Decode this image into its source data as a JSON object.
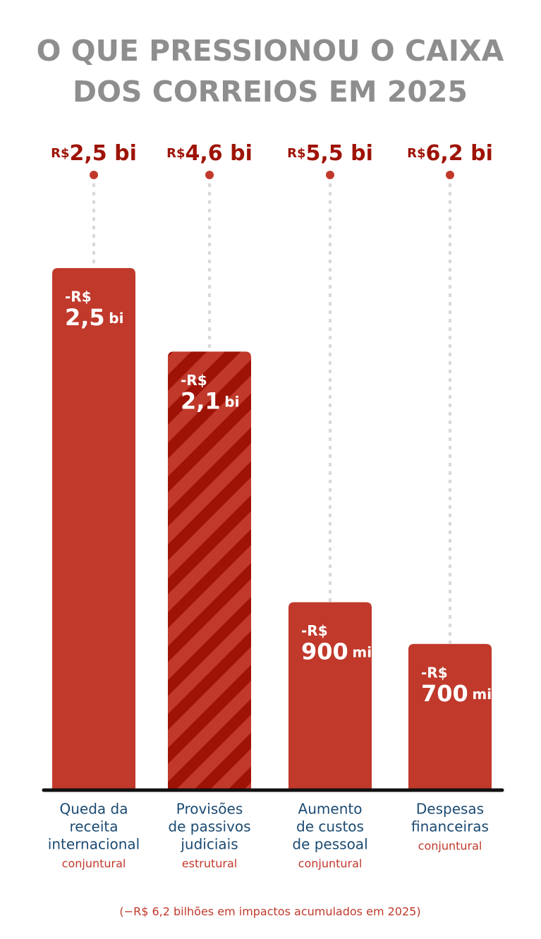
{
  "chart_data": {
    "type": "bar",
    "title": [
      "O QUE PRESSIONOU O CAIXA",
      "DOS CORREIOS EM 2025"
    ],
    "categories": [
      [
        "Queda da",
        "receita",
        "internacional"
      ],
      [
        "Provisões",
        "de passivos",
        "judiciais"
      ],
      [
        "Aumento",
        "de custos",
        "de pessoal"
      ],
      [
        "Despesas",
        "financeiras"
      ]
    ],
    "kinds": [
      "conjuntural",
      "estrutural",
      "conjuntural",
      "conjuntural"
    ],
    "bar_styles": [
      "solid",
      "hatched",
      "solid",
      "solid"
    ],
    "values": [
      2.5,
      2.1,
      0.9,
      0.7
    ],
    "value_labels": [
      [
        "-R$",
        "2,5",
        "bi"
      ],
      [
        "-R$",
        "2,1",
        "bi"
      ],
      [
        "-R$",
        "900",
        "mi"
      ],
      [
        "-R$",
        "700",
        "mi"
      ]
    ],
    "totals": [
      [
        "R$",
        "2,5 bi"
      ],
      [
        "R$",
        "4,6 bi"
      ],
      [
        "R$",
        "5,5 bi"
      ],
      [
        "R$",
        "6,2 bi"
      ]
    ],
    "footnote": "(−R$ 6,2 bilhões em impactos acumulados em 2025)",
    "color": "#c0392b",
    "hatch_color": "#9e1306",
    "ylim": [
      0,
      2.5
    ]
  }
}
